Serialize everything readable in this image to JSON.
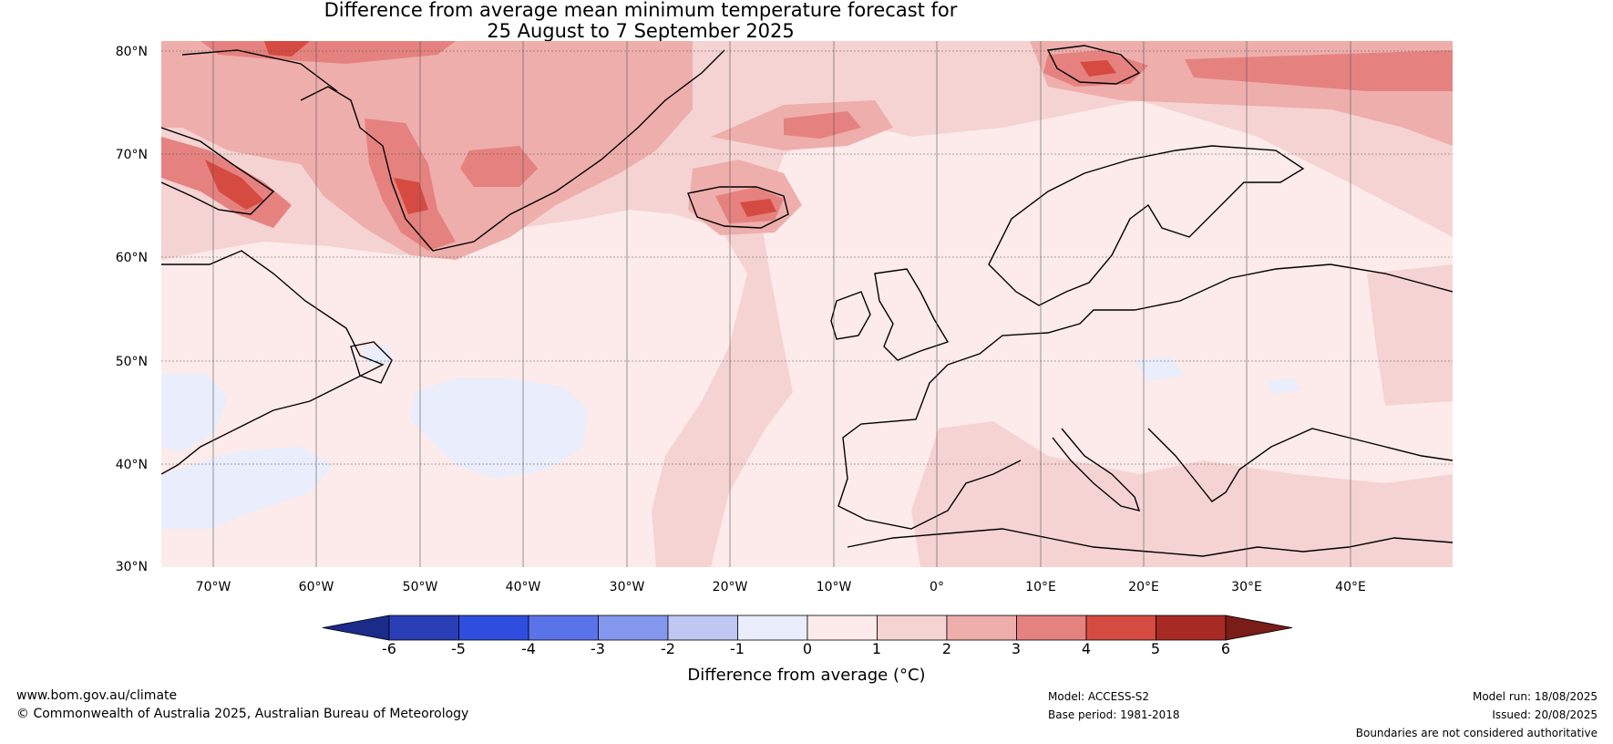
{
  "title": {
    "line1": "Difference from average mean minimum temperature forecast for",
    "line2": "25 August to 7 September 2025"
  },
  "axes": {
    "lat_labels": [
      "80°N",
      "70°N",
      "60°N",
      "50°N",
      "40°N",
      "30°N"
    ],
    "lon_labels": [
      "70°W",
      "60°W",
      "50°W",
      "40°W",
      "30°W",
      "20°W",
      "10°W",
      "0°",
      "10°E",
      "20°E",
      "30°E",
      "40°E"
    ]
  },
  "colorbar": {
    "title": "Difference from average (°C)",
    "tick_labels": [
      "-6",
      "-5",
      "-4",
      "-3",
      "-2",
      "-1",
      "0",
      "1",
      "2",
      "3",
      "4",
      "5",
      "6"
    ],
    "colors": [
      "#1b2b8a",
      "#2a3fb5",
      "#2f4ede",
      "#5b73e8",
      "#8497ee",
      "#bfc8f3",
      "#e9edfc",
      "#fcebea",
      "#f5d3d2",
      "#eeaeac",
      "#e5827f",
      "#d64b41",
      "#a82a24",
      "#7a1c17"
    ]
  },
  "footer": {
    "website": "www.bom.gov.au/climate",
    "copyright": "© Commonwealth of Australia 2025, Australian Bureau of Meteorology",
    "model": "Model: ACCESS-S2",
    "base_period": "Base period: 1981-2018",
    "model_run": "Model run: 18/08/2025",
    "issued": "Issued: 20/08/2025",
    "disclaimer": "Boundaries are not considered authoritative"
  }
}
